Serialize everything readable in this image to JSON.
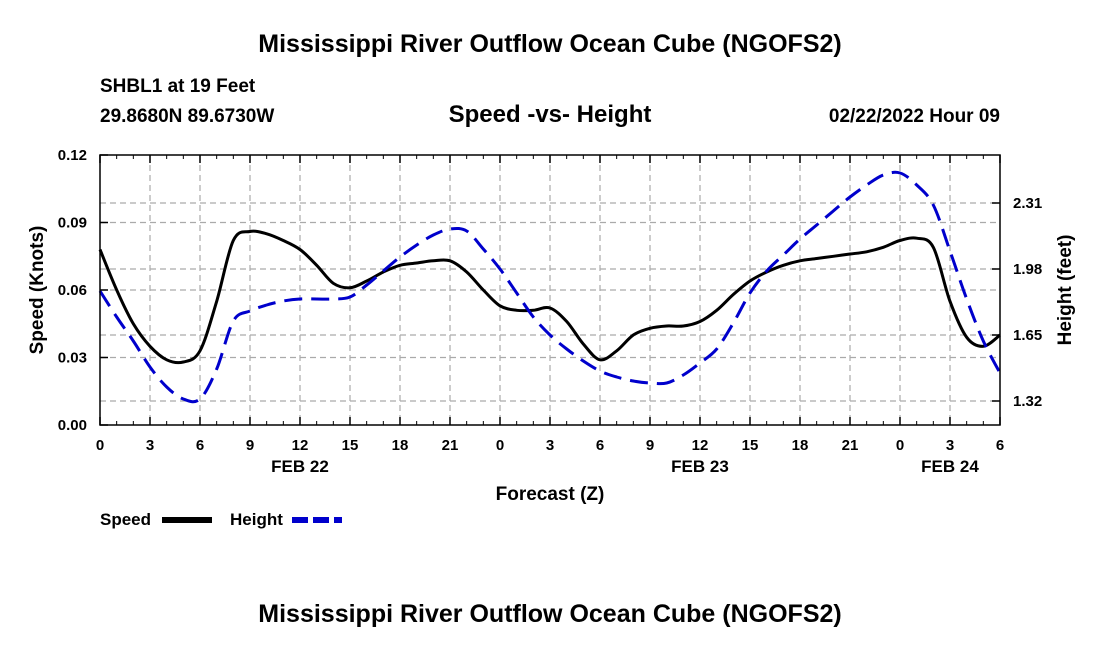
{
  "title": "Mississippi River Outflow Ocean Cube (NGOFS2)",
  "bottom_title": "Mississippi River Outflow Ocean Cube (NGOFS2)",
  "station": "SHBL1 at 19 Feet",
  "coords": "29.8680N  89.6730W",
  "datetime": "02/22/2022 Hour 09",
  "colors": {
    "speed": "#000000",
    "height": "#0000cc",
    "grid": "#aaaaaa"
  },
  "chart_data": {
    "type": "line",
    "title": "Speed -vs- Height",
    "xlabel": "Forecast (Z)",
    "ylabel": "Speed (Knots)",
    "y2label": "Height (feet)",
    "x_range": [
      0,
      54
    ],
    "ylim": [
      0,
      0.12
    ],
    "y2lim": [
      1.2,
      2.55
    ],
    "x_ticks": [
      0,
      3,
      6,
      9,
      12,
      15,
      18,
      21,
      24,
      27,
      30,
      33,
      36,
      39,
      42,
      45,
      48,
      51,
      54
    ],
    "x_tick_labels": [
      "0",
      "3",
      "6",
      "9",
      "12",
      "15",
      "18",
      "21",
      "0",
      "3",
      "6",
      "9",
      "12",
      "15",
      "18",
      "21",
      "0",
      "3",
      "6"
    ],
    "date_labels": [
      {
        "label": "FEB 22",
        "x": 12
      },
      {
        "label": "FEB 23",
        "x": 36
      },
      {
        "label": "FEB 24",
        "x": 51
      }
    ],
    "y_ticks": [
      0,
      0.03,
      0.06,
      0.09,
      0.12
    ],
    "y_tick_labels": [
      "0.00",
      "0.03",
      "0.06",
      "0.09",
      "0.12"
    ],
    "y2_ticks": [
      1.32,
      1.65,
      1.98,
      2.31
    ],
    "y2_tick_labels": [
      "1.32",
      "1.65",
      "1.98",
      "2.31"
    ],
    "grid": true,
    "series": [
      {
        "name": "Speed",
        "axis": "left",
        "style": "solid",
        "x": [
          0,
          1,
          2,
          3,
          4,
          5,
          6,
          7,
          8,
          9,
          10,
          11,
          12,
          13,
          14,
          15,
          16,
          17,
          18,
          19,
          20,
          21,
          22,
          23,
          24,
          25,
          26,
          27,
          28,
          29,
          30,
          31,
          32,
          33,
          34,
          35,
          36,
          37,
          38,
          39,
          40,
          41,
          42,
          43,
          44,
          45,
          46,
          47,
          48,
          49,
          50,
          51,
          52,
          53,
          54
        ],
        "values": [
          0.078,
          0.06,
          0.045,
          0.035,
          0.029,
          0.028,
          0.033,
          0.055,
          0.082,
          0.086,
          0.085,
          0.082,
          0.078,
          0.071,
          0.063,
          0.061,
          0.064,
          0.068,
          0.071,
          0.072,
          0.073,
          0.073,
          0.068,
          0.06,
          0.053,
          0.051,
          0.051,
          0.052,
          0.046,
          0.036,
          0.029,
          0.033,
          0.04,
          0.043,
          0.044,
          0.044,
          0.046,
          0.051,
          0.058,
          0.064,
          0.068,
          0.071,
          0.073,
          0.074,
          0.075,
          0.076,
          0.077,
          0.079,
          0.082,
          0.083,
          0.079,
          0.055,
          0.039,
          0.035,
          0.04
        ]
      },
      {
        "name": "Height",
        "axis": "right",
        "style": "dashed",
        "x": [
          0,
          1,
          2,
          3,
          4,
          5,
          6,
          7,
          8,
          9,
          10,
          11,
          12,
          13,
          14,
          15,
          16,
          17,
          18,
          19,
          20,
          21,
          22,
          23,
          24,
          25,
          26,
          27,
          28,
          29,
          30,
          31,
          32,
          33,
          34,
          35,
          36,
          37,
          38,
          39,
          40,
          41,
          42,
          43,
          44,
          45,
          46,
          47,
          48,
          49,
          50,
          51,
          52,
          53,
          54
        ],
        "values": [
          1.87,
          1.74,
          1.62,
          1.49,
          1.39,
          1.33,
          1.33,
          1.48,
          1.72,
          1.77,
          1.8,
          1.82,
          1.83,
          1.83,
          1.83,
          1.84,
          1.9,
          1.97,
          2.04,
          2.1,
          2.15,
          2.18,
          2.17,
          2.08,
          1.98,
          1.86,
          1.74,
          1.65,
          1.58,
          1.52,
          1.47,
          1.44,
          1.42,
          1.41,
          1.41,
          1.45,
          1.51,
          1.58,
          1.71,
          1.86,
          1.97,
          2.05,
          2.13,
          2.2,
          2.27,
          2.34,
          2.4,
          2.45,
          2.46,
          2.4,
          2.3,
          2.07,
          1.83,
          1.62,
          1.46
        ]
      }
    ]
  },
  "legend": [
    {
      "name": "Speed"
    },
    {
      "name": "Height"
    }
  ]
}
